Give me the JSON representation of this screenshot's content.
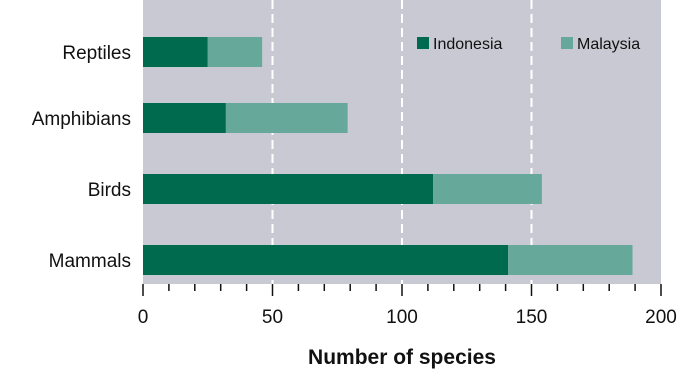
{
  "chart_data": {
    "type": "bar",
    "stacked": true,
    "orientation": "horizontal",
    "categories": [
      "Reptiles",
      "Amphibians",
      "Birds",
      "Mammals"
    ],
    "series": [
      {
        "name": "Indonesia",
        "values": [
          25,
          32,
          112,
          141
        ],
        "color": "#006a4e"
      },
      {
        "name": "Malaysia",
        "values": [
          21,
          47,
          42,
          48
        ],
        "color": "#66a89a"
      }
    ],
    "xlabel": "Number of species",
    "xlim": [
      0,
      200
    ],
    "xticks": [
      "0",
      "50",
      "100",
      "150",
      "200"
    ],
    "grid": "vertical dashed white",
    "legend_position": "top-right",
    "plot_background": "#c9c9d3"
  }
}
